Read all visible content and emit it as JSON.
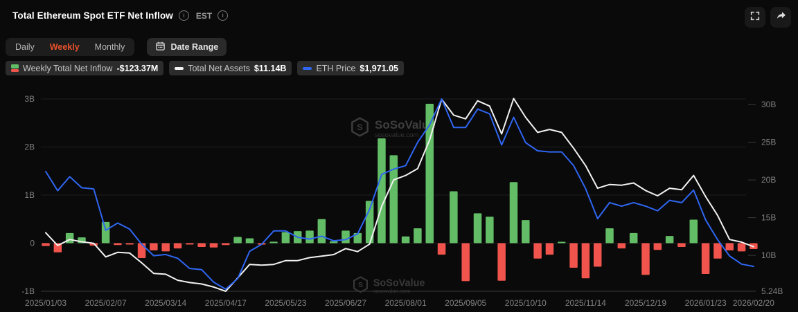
{
  "header": {
    "title": "Total Ethereum Spot ETF Net Inflow",
    "timezone": "EST"
  },
  "controls": {
    "tabs": [
      {
        "label": "Daily",
        "active": false
      },
      {
        "label": "Weekly",
        "active": true
      },
      {
        "label": "Monthly",
        "active": false
      }
    ],
    "active_tab": "Weekly",
    "date_range_label": "Date Range"
  },
  "legend": [
    {
      "label": "Weekly Total Net Inflow",
      "value": "-$123.37M",
      "icon": "bar-pair-icon",
      "colors": {
        "positive": "#63bd66",
        "negative": "#f0544c"
      }
    },
    {
      "label": "Total Net Assets",
      "value": "$11.14B",
      "icon": "white-dash-icon",
      "color": "#f2f2f2"
    },
    {
      "label": "ETH Price",
      "value": "$1,971.05",
      "icon": "blue-dash-icon",
      "color": "#2f66f2"
    }
  ],
  "watermark": {
    "name": "SoSoValue",
    "domain": "sosovalue.com"
  },
  "chart_data": {
    "type": "bar",
    "subtype": "combo-bar-two-lines",
    "title": "Total Ethereum Spot ETF Net Inflow (Weekly)",
    "left_axis": {
      "unit": "USD billions (weekly net inflow)",
      "ticks": [
        "3B",
        "2B",
        "1B",
        "0",
        "-1B"
      ],
      "values": [
        3,
        2,
        1,
        0,
        -1
      ],
      "min": -1,
      "max": 3
    },
    "right_axis": {
      "unit": "USD billions (total net assets)",
      "ticks": [
        "30B",
        "25B",
        "20B",
        "15B",
        "10B",
        "5.24B"
      ],
      "tick_values": [
        30,
        25,
        20,
        15,
        10,
        5.24
      ],
      "min": 5.24,
      "max": 30.8
    },
    "grid": true,
    "legend_position": "top-left",
    "tick_indices": [
      0,
      5,
      10,
      15,
      20,
      25,
      30,
      35,
      40,
      45,
      50,
      55,
      59
    ],
    "x_tick_labels": [
      "2025/01/03",
      "2025/02/07",
      "2025/03/14",
      "2025/04/17",
      "2025/05/23",
      "2025/06/27",
      "2025/08/01",
      "2025/09/05",
      "2025/10/10",
      "2025/11/14",
      "2025/12/19",
      "2026/01/23",
      "2026/02/20"
    ],
    "dates": [
      "2025/01/03",
      "2025/01/10",
      "2025/01/17",
      "2025/01/24",
      "2025/01/31",
      "2025/02/07",
      "2025/02/14",
      "2025/02/21",
      "2025/02/28",
      "2025/03/07",
      "2025/03/14",
      "2025/03/21",
      "2025/03/28",
      "2025/04/04",
      "2025/04/11",
      "2025/04/17",
      "2025/04/25",
      "2025/05/02",
      "2025/05/09",
      "2025/05/16",
      "2025/05/23",
      "2025/05/30",
      "2025/06/06",
      "2025/06/13",
      "2025/06/20",
      "2025/06/27",
      "2025/07/03",
      "2025/07/11",
      "2025/07/18",
      "2025/07/25",
      "2025/08/01",
      "2025/08/08",
      "2025/08/15",
      "2025/08/22",
      "2025/08/29",
      "2025/09/05",
      "2025/09/12",
      "2025/09/19",
      "2025/09/26",
      "2025/10/03",
      "2025/10/10",
      "2025/10/17",
      "2025/10/24",
      "2025/10/31",
      "2025/11/07",
      "2025/11/14",
      "2025/11/21",
      "2025/11/28",
      "2025/12/05",
      "2025/12/12",
      "2025/12/19",
      "2025/12/26",
      "2026/01/02",
      "2026/01/09",
      "2026/01/16",
      "2026/01/23",
      "2026/01/30",
      "2026/02/06",
      "2026/02/13",
      "2026/02/20"
    ],
    "series": [
      {
        "name": "Weekly Total Net Inflow",
        "type": "bar",
        "axis": "left",
        "unit": "B USD",
        "colors": {
          "positive": "#63bd66",
          "negative": "#f0544c"
        },
        "current": "-$123.37M",
        "values": [
          -0.06,
          -0.19,
          0.21,
          0.12,
          -0.05,
          0.44,
          -0.04,
          -0.02,
          -0.31,
          -0.15,
          -0.17,
          -0.11,
          -0.02,
          -0.08,
          -0.09,
          -0.04,
          0.13,
          0.1,
          -0.03,
          0.03,
          0.23,
          0.25,
          0.26,
          0.5,
          0.04,
          0.26,
          0.21,
          0.88,
          2.18,
          1.83,
          0.14,
          0.31,
          2.9,
          -0.24,
          1.08,
          -0.79,
          0.62,
          0.55,
          -0.78,
          1.27,
          0.48,
          -0.32,
          -0.24,
          0.02,
          -0.51,
          -0.73,
          -0.49,
          0.31,
          -0.11,
          0.21,
          -0.66,
          -0.14,
          0.15,
          -0.08,
          0.49,
          -0.64,
          -0.32,
          -0.15,
          -0.17,
          -0.123
        ]
      },
      {
        "name": "Total Net Assets",
        "type": "line",
        "axis": "right",
        "unit": "B USD",
        "color": "#f2f2f2",
        "current": "$11.14B",
        "values": [
          13.0,
          11.3,
          12.1,
          11.8,
          11.6,
          9.8,
          10.4,
          10.3,
          9.0,
          7.6,
          7.5,
          6.7,
          6.4,
          6.2,
          5.8,
          5.24,
          7.0,
          8.8,
          8.7,
          8.8,
          9.3,
          9.3,
          9.7,
          9.9,
          10.1,
          10.9,
          10.5,
          11.5,
          16.5,
          20.0,
          20.6,
          21.5,
          25.3,
          30.7,
          28.6,
          28.1,
          30.5,
          29.8,
          26.1,
          30.8,
          28.3,
          26.3,
          26.7,
          26.3,
          24.2,
          21.9,
          18.9,
          19.4,
          19.3,
          19.6,
          18.6,
          17.9,
          18.9,
          18.7,
          20.6,
          17.8,
          15.3,
          12.1,
          11.75,
          11.14
        ]
      },
      {
        "name": "ETH Price",
        "type": "line",
        "axis": "hidden",
        "unit": "USD",
        "color": "#2f66f2",
        "current": "$1,971.05",
        "scale_hint": {
          "min": 1580,
          "max": 4845
        },
        "values": [
          3600,
          3270,
          3510,
          3320,
          3300,
          2590,
          2715,
          2610,
          2350,
          2155,
          2175,
          2110,
          1935,
          1915,
          1700,
          1580,
          1760,
          2230,
          2350,
          2580,
          2580,
          2470,
          2440,
          2490,
          2410,
          2430,
          2530,
          2950,
          3550,
          3640,
          3700,
          4100,
          4400,
          4845,
          4355,
          4355,
          4670,
          4590,
          4055,
          4530,
          4095,
          3955,
          3935,
          3935,
          3700,
          3305,
          2790,
          3065,
          3005,
          3065,
          3005,
          2925,
          3105,
          3065,
          3280,
          2770,
          2430,
          2150,
          2010,
          1971
        ]
      }
    ]
  }
}
